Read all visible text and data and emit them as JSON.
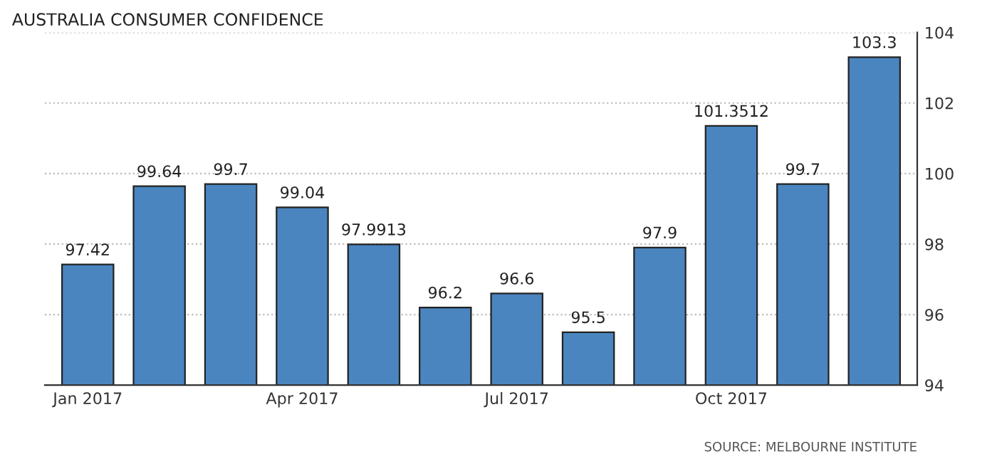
{
  "chart_data": {
    "type": "bar",
    "title": "AUSTRALIA CONSUMER CONFIDENCE",
    "categories": [
      "Jan 2017",
      null,
      null,
      "Apr 2017",
      null,
      null,
      "Jul 2017",
      null,
      null,
      "Oct 2017",
      null,
      null
    ],
    "values": [
      97.42,
      99.64,
      99.7,
      99.04,
      97.9913,
      96.2,
      96.6,
      95.5,
      97.9,
      101.3512,
      99.7,
      103.3
    ],
    "color": "#4a85bf",
    "ylim": [
      94,
      104
    ],
    "yticks": [
      94,
      96,
      98,
      100,
      102,
      104
    ],
    "grid": "y",
    "data_labels": true,
    "annotations": [
      "SOURCE: MELBOURNE INSTITUTE"
    ]
  }
}
